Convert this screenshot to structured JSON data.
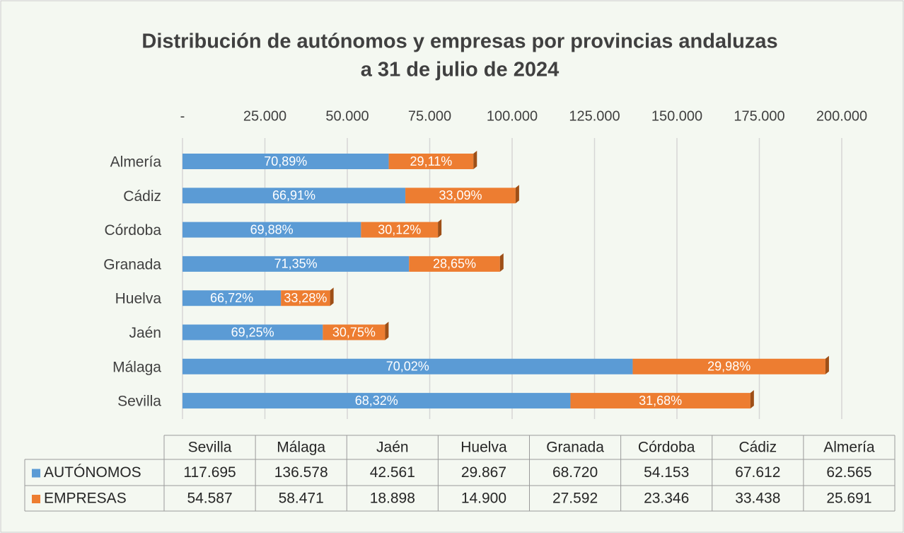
{
  "chart_data": {
    "type": "stacked_barh",
    "title": [
      "Distribución de autónomos y empresas por provincias andaluzas",
      "a 31 de julio de 2024"
    ],
    "categories": [
      "Sevilla",
      "Málaga",
      "Jaén",
      "Huelva",
      "Granada",
      "Córdoba",
      "Cádiz",
      "Almería"
    ],
    "series": [
      {
        "name": "AUTÓNOMOS",
        "color": "#5b9bd5",
        "values": [
          117695,
          136578,
          42561,
          29867,
          68720,
          54153,
          67612,
          62565
        ],
        "value_labels": [
          "117.695",
          "136.578",
          "42.561",
          "29.867",
          "68.720",
          "54.153",
          "67.612",
          "62.565"
        ],
        "share_labels": [
          "68,32%",
          "70,02%",
          "69,25%",
          "66,72%",
          "71,35%",
          "69,88%",
          "66,91%",
          "70,89%"
        ]
      },
      {
        "name": "EMPRESAS",
        "color": "#ed7d31",
        "values": [
          54587,
          58471,
          18898,
          14900,
          27592,
          23346,
          33438,
          25691
        ],
        "value_labels": [
          "54.587",
          "58.471",
          "18.898",
          "14.900",
          "27.592",
          "23.346",
          "33.438",
          "25.691"
        ],
        "share_labels": [
          "31,68%",
          "29,98%",
          "30,75%",
          "33,28%",
          "28,65%",
          "30,12%",
          "33,09%",
          "29,11%"
        ]
      }
    ],
    "xlim": [
      0,
      200000
    ],
    "xticks": [
      {
        "value": 0,
        "label": "-"
      },
      {
        "value": 25000,
        "label": "25.000"
      },
      {
        "value": 50000,
        "label": "50.000"
      },
      {
        "value": 75000,
        "label": "75.000"
      },
      {
        "value": 100000,
        "label": "100.000"
      },
      {
        "value": 125000,
        "label": "125.000"
      },
      {
        "value": 150000,
        "label": "150.000"
      },
      {
        "value": 175000,
        "label": "175.000"
      },
      {
        "value": 200000,
        "label": "200.000"
      }
    ],
    "grid": true
  }
}
